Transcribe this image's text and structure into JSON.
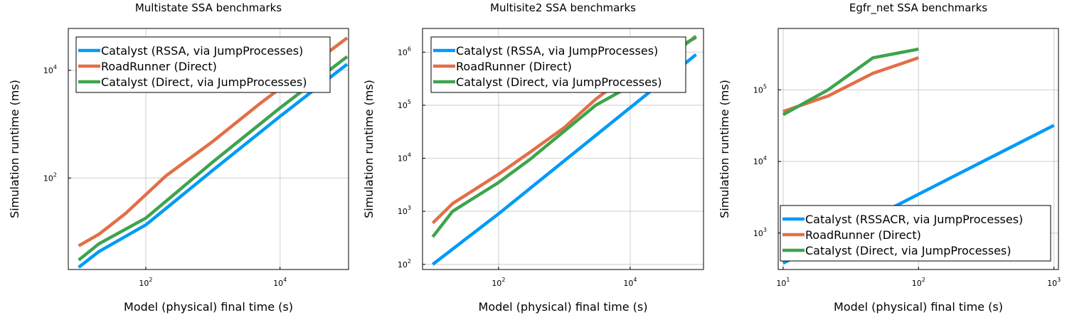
{
  "chart_data": [
    {
      "type": "line",
      "title": "Multistate SSA benchmarks",
      "xlabel": "Model (physical) final time (s)",
      "ylabel": "Simulation runtime (ms)",
      "xscale": "log",
      "yscale": "log",
      "xlim": [
        7,
        105000
      ],
      "ylim": [
        2,
        60000
      ],
      "grid": true,
      "legend_position": "top-left",
      "x_ticks": [
        {
          "value": 100,
          "base": "10",
          "exp": "2"
        },
        {
          "value": 10000,
          "base": "10",
          "exp": "4"
        }
      ],
      "y_ticks": [
        {
          "value": 100,
          "base": "10",
          "exp": "2"
        },
        {
          "value": 10000,
          "base": "10",
          "exp": "4"
        }
      ],
      "series": [
        {
          "name": "Catalyst (RSSA, via JumpProcesses)",
          "color": "#009af9",
          "x": [
            10,
            20,
            100,
            1000,
            10000,
            100000
          ],
          "y": [
            2.2,
            4.3,
            13.5,
            140,
            1400,
            13000
          ]
        },
        {
          "name": "RoadRunner (Direct)",
          "color": "#e26f46",
          "x": [
            10,
            20,
            50,
            200,
            1000,
            5000,
            100000
          ],
          "y": [
            5.5,
            9,
            22,
            110,
            480,
            2400,
            40000
          ]
        },
        {
          "name": "Catalyst (Direct, via JumpProcesses)",
          "color": "#3da44d",
          "x": [
            10,
            20,
            100,
            1000,
            10000,
            100000
          ],
          "y": [
            3,
            6,
            18,
            200,
            2000,
            18000
          ]
        }
      ]
    },
    {
      "type": "line",
      "title": "Multisite2 SSA benchmarks",
      "xlabel": "Model (physical) final time (s)",
      "ylabel": "Simulation runtime (ms)",
      "xscale": "log",
      "yscale": "log",
      "xlim": [
        7,
        130000
      ],
      "ylim": [
        80,
        2800000
      ],
      "grid": true,
      "legend_position": "top-left",
      "x_ticks": [
        {
          "value": 100,
          "base": "10",
          "exp": "2"
        },
        {
          "value": 10000,
          "base": "10",
          "exp": "4"
        }
      ],
      "y_ticks": [
        {
          "value": 100,
          "base": "10",
          "exp": "2"
        },
        {
          "value": 1000,
          "base": "10",
          "exp": "3"
        },
        {
          "value": 10000,
          "base": "10",
          "exp": "4"
        },
        {
          "value": 100000,
          "base": "10",
          "exp": "5"
        },
        {
          "value": 1000000,
          "base": "10",
          "exp": "6"
        }
      ],
      "series": [
        {
          "name": "Catalyst (RSSA, via JumpProcesses)",
          "color": "#009af9",
          "x": [
            10,
            100,
            1000,
            10000,
            100000
          ],
          "y": [
            100,
            900,
            9000,
            90000,
            900000
          ]
        },
        {
          "name": "RoadRunner (Direct)",
          "color": "#e26f46",
          "x": [
            10,
            20,
            100,
            300,
            1000,
            3000,
            10000,
            100000
          ],
          "y": [
            600,
            1400,
            5000,
            13000,
            38000,
            130000,
            400000,
            1900000
          ]
        },
        {
          "name": "Catalyst (Direct, via JumpProcesses)",
          "color": "#3da44d",
          "x": [
            10,
            20,
            100,
            300,
            3000,
            10000,
            100000
          ],
          "y": [
            330,
            1000,
            3500,
            9500,
            100000,
            230000,
            2000000
          ]
        }
      ]
    },
    {
      "type": "line",
      "title": "Egfr_net SSA benchmarks",
      "xlabel": "Model (physical) final time (s)",
      "ylabel": "Simulation runtime (ms)",
      "xscale": "log",
      "yscale": "log",
      "xlim": [
        9.2,
        1080
      ],
      "ylim": [
        310,
        720000
      ],
      "grid": true,
      "legend_position": "bottom-left",
      "x_ticks": [
        {
          "value": 10,
          "base": "10",
          "exp": "1"
        },
        {
          "value": 100,
          "base": "10",
          "exp": "2"
        },
        {
          "value": 1000,
          "base": "10",
          "exp": "3"
        }
      ],
      "y_ticks": [
        {
          "value": 1000,
          "base": "10",
          "exp": "3"
        },
        {
          "value": 10000,
          "base": "10",
          "exp": "4"
        },
        {
          "value": 100000,
          "base": "10",
          "exp": "5"
        }
      ],
      "series": [
        {
          "name": "Catalyst (RSSACR, via JumpProcesses)",
          "color": "#009af9",
          "x": [
            10,
            1000
          ],
          "y": [
            380,
            32000
          ]
        },
        {
          "name": "RoadRunner (Direct)",
          "color": "#e26f46",
          "x": [
            10,
            21.5,
            46,
            100
          ],
          "y": [
            50000,
            82000,
            170000,
            280000
          ]
        },
        {
          "name": "Catalyst (Direct, via JumpProcesses)",
          "color": "#3da44d",
          "x": [
            10,
            21.5,
            46,
            100
          ],
          "y": [
            45000,
            100000,
            280000,
            370000
          ]
        }
      ]
    }
  ]
}
